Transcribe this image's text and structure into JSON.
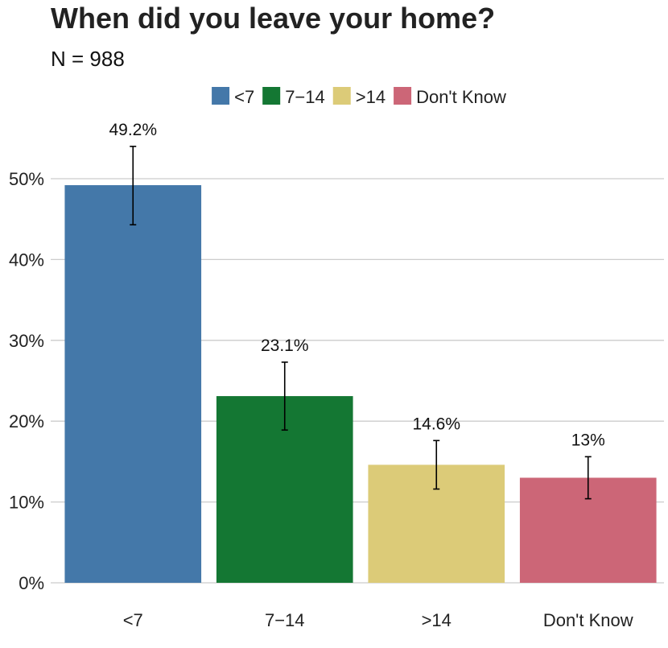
{
  "chart_data": {
    "type": "bar",
    "title": "When did you leave your home?",
    "subtitle": "N = 988",
    "categories": [
      "<7",
      "7−14",
      ">14",
      "Don't Know"
    ],
    "values": [
      49.2,
      23.1,
      14.6,
      13
    ],
    "data_labels": [
      "49.2%",
      "23.1%",
      "14.6%",
      "13%"
    ],
    "error_bars": [
      {
        "low": 44.3,
        "high": 54.0
      },
      {
        "low": 18.9,
        "high": 27.3
      },
      {
        "low": 11.6,
        "high": 17.6
      },
      {
        "low": 10.4,
        "high": 15.6
      }
    ],
    "colors": [
      "#4478a9",
      "#147733",
      "#dccb78",
      "#cc6677"
    ],
    "legend": {
      "position": "top",
      "entries": [
        "<7",
        "7−14",
        ">14",
        "Don't Know"
      ]
    },
    "y_ticks": [
      0,
      10,
      20,
      30,
      40,
      50
    ],
    "y_tick_labels": [
      "0%",
      "10%",
      "20%",
      "30%",
      "40%",
      "50%"
    ],
    "ylim": [
      0,
      55
    ],
    "grid": true,
    "grid_color": "#cccccc",
    "xlabel": "",
    "ylabel": ""
  }
}
